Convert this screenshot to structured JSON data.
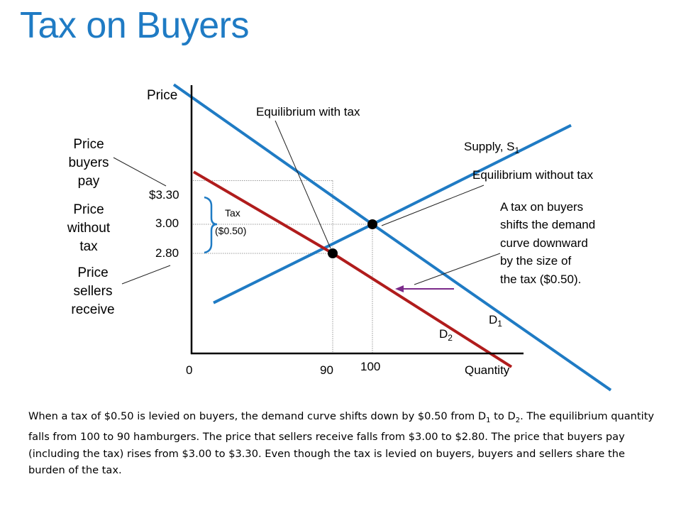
{
  "page_title": "Tax on Buyers",
  "side_labels": {
    "buyers_pay": [
      "Price",
      "buyers",
      "pay"
    ],
    "without_tax": [
      "Price",
      "without",
      "tax"
    ],
    "sellers_receive": [
      "Price",
      "sellers",
      "receive"
    ]
  },
  "annotations": {
    "eq_with_tax": "Equilibrium with tax",
    "eq_without_tax": "Equilibrium without tax",
    "tax_label": "Tax",
    "tax_amount": "($0.50)",
    "shift_note": [
      "A tax on buyers",
      "shifts the demand",
      "curve downward",
      "by the size of",
      "the tax ($0.50)."
    ]
  },
  "chart_data": {
    "type": "line",
    "xlabel": "Quantity",
    "ylabel": "Price",
    "x_ticks": [
      "0",
      "90",
      "100"
    ],
    "y_ticks": [
      "$3.30",
      "3.00",
      "2.80"
    ],
    "curve_labels": {
      "supply": {
        "text": "Supply, S",
        "sub": "1"
      },
      "demand_original": {
        "text": "D",
        "sub": "1"
      },
      "demand_taxed": {
        "text": "D",
        "sub": "2"
      }
    },
    "series": [
      {
        "name": "Supply, S1",
        "color": "#1f7bc4",
        "points": [
          [
            60,
            2.46
          ],
          [
            100,
            3.0
          ],
          [
            150,
            3.68
          ]
        ]
      },
      {
        "name": "D1",
        "color": "#1f7bc4",
        "points": [
          [
            50,
            3.96
          ],
          [
            100,
            3.0
          ],
          [
            160,
            1.86
          ]
        ]
      },
      {
        "name": "D2",
        "color": "#b01c1c",
        "points": [
          [
            55,
            3.36
          ],
          [
            90,
            2.8
          ],
          [
            135,
            2.02
          ]
        ]
      }
    ],
    "equilibria": [
      {
        "label": "Equilibrium without tax",
        "quantity": 100,
        "price": 3.0
      },
      {
        "label": "Equilibrium with tax",
        "quantity": 90,
        "price_sellers_receive": 2.8,
        "price_buyers_pay": 3.3
      }
    ],
    "tax": 0.5,
    "shift_arrow_color": "#7b2a8a",
    "axis_color": "#000000",
    "guide_color": "#999999"
  },
  "caption": {
    "p1": "When a tax of $0.50 is levied on buyers, the demand curve shifts down by $0.50 from D",
    "s1": "1",
    "p2": " to D",
    "s2": "2",
    "p3": ". The equilibrium quantity falls from 100 to 90 hamburgers. The price that sellers receive falls from $3.00 to $2.80. The price that buyers pay (including the tax) rises from $3.00 to $3.30. Even though the tax is levied on buyers, buyers and sellers share the burden of the tax."
  }
}
